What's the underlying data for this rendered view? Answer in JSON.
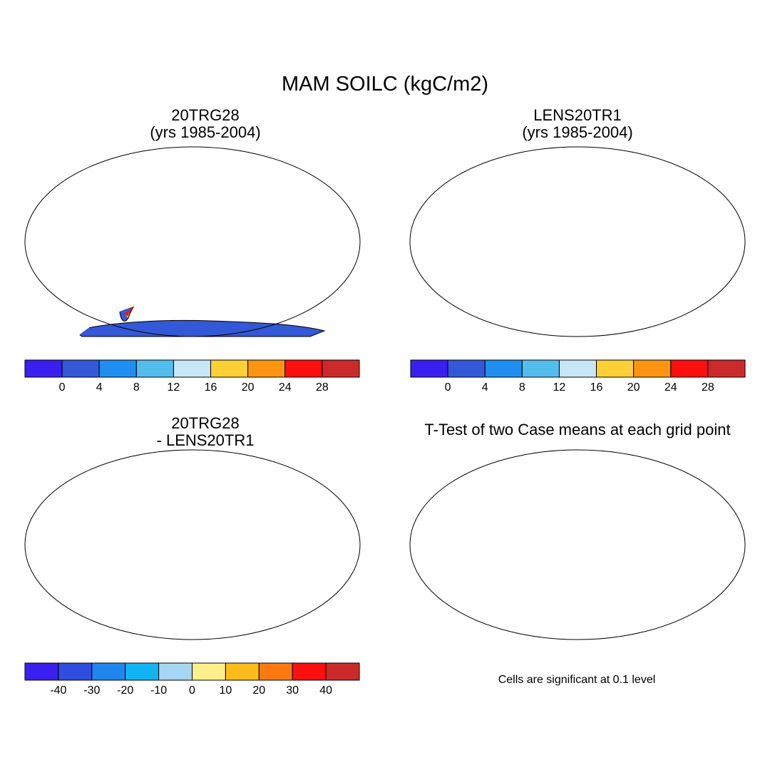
{
  "figure": {
    "title": "MAM SOILC (kgC/m2)"
  },
  "panels": [
    {
      "id": "top-left",
      "title_lines": [
        "20TRG28",
        "(yrs 1985-2004)"
      ],
      "field": "case-mean",
      "colorbar": "absolute"
    },
    {
      "id": "top-right",
      "title_lines": [
        "LENS20TR1",
        "(yrs 1985-2004)"
      ],
      "field": "case-mean",
      "colorbar": "absolute"
    },
    {
      "id": "bottom-left",
      "title_lines": [
        "20TRG28",
        "- LENS20TR1"
      ],
      "field": "difference",
      "colorbar": "difference"
    },
    {
      "id": "bottom-right",
      "title_lines": [
        "T-Test of two Case means at each grid point"
      ],
      "field": "significance",
      "note": "Cells are significant at 0.1 level"
    }
  ],
  "colorbars": {
    "absolute": {
      "colors": [
        "#3a1ff0",
        "#3358d8",
        "#1f8ef0",
        "#53bdee",
        "#c8e6f5",
        "#fdd135",
        "#fd9510",
        "#fb0f0f",
        "#cc2a2a"
      ],
      "labels": [
        "0",
        "4",
        "8",
        "12",
        "16",
        "20",
        "24",
        "28"
      ]
    },
    "difference": {
      "colors": [
        "#3a1ff0",
        "#2f4ee0",
        "#1f86f0",
        "#12b4f6",
        "#a6d6f3",
        "#fdf08a",
        "#fdbc1c",
        "#fd7a12",
        "#fb0f0f",
        "#cc2a2a"
      ],
      "labels": [
        "-40",
        "-30",
        "-20",
        "-10",
        "0",
        "10",
        "20",
        "30",
        "40"
      ]
    }
  },
  "significance_color": "#f00000"
}
